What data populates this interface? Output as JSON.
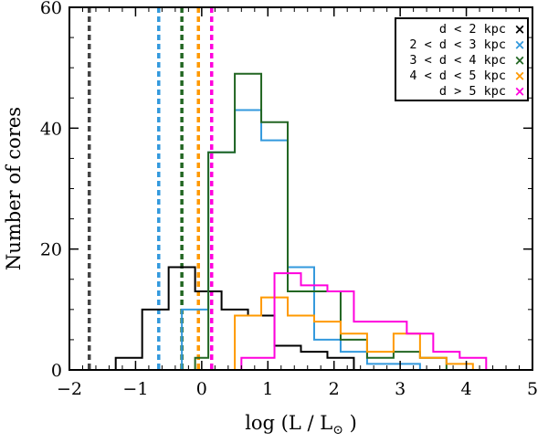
{
  "chart_data": {
    "type": "histogram",
    "title": "",
    "xlabel": "log (L / L",
    "xlabel_sub": "⊙",
    "xlabel_close": ")",
    "ylabel": "Number of cores",
    "xlim": [
      -2,
      5
    ],
    "ylim": [
      0,
      60
    ],
    "xticks": [
      -2,
      -1,
      0,
      1,
      2,
      3,
      4,
      5
    ],
    "xtick_labels": [
      "−2",
      "−1",
      "0",
      "1",
      "2",
      "3",
      "4",
      "5"
    ],
    "yticks": [
      0,
      20,
      40,
      60
    ],
    "ytick_labels": [
      "0",
      "20",
      "40",
      "60"
    ],
    "bin_width": 0.4,
    "legend_position": "top-right",
    "series": [
      {
        "name": "d < 2 kpc",
        "color": "#000000",
        "limit": -1.7,
        "limit_color": "#444444",
        "bin_starts": [
          -1.3,
          -0.9,
          -0.5,
          -0.1,
          0.3,
          0.7,
          1.1,
          1.5,
          1.9,
          2.3
        ],
        "counts": [
          2,
          10,
          17,
          13,
          10,
          9,
          4,
          3,
          2,
          0
        ]
      },
      {
        "name": "2 < d < 3 kpc",
        "color": "#3399dd",
        "limit": -0.65,
        "limit_color": "#3399dd",
        "bin_starts": [
          -0.3,
          0.1,
          0.5,
          0.9,
          1.3,
          1.7,
          2.1,
          2.5,
          2.9,
          3.3,
          3.7
        ],
        "counts": [
          10,
          36,
          43,
          38,
          17,
          5,
          3,
          1,
          1,
          0,
          0
        ]
      },
      {
        "name": "3 < d < 4 kpc",
        "color": "#226622",
        "limit": -0.3,
        "limit_color": "#226622",
        "bin_starts": [
          -0.1,
          0.1,
          0.5,
          0.9,
          1.3,
          1.7,
          2.1,
          2.5,
          2.9,
          3.3
        ],
        "counts": [
          2,
          36,
          49,
          41,
          13,
          13,
          5,
          2,
          3,
          2
        ]
      },
      {
        "name": "4 < d < 5 kpc",
        "color": "#ff9900",
        "limit": -0.05,
        "limit_color": "#ff9900",
        "bin_starts": [
          0.5,
          0.9,
          1.3,
          1.7,
          2.1,
          2.5,
          2.9,
          3.3,
          3.7
        ],
        "counts": [
          9,
          12,
          9,
          8,
          6,
          3,
          6,
          2,
          1
        ]
      },
      {
        "name": "d > 5 kpc",
        "color": "#ff00dd",
        "limit": 0.15,
        "limit_color": "#ff00dd",
        "bin_starts": [
          1.1,
          1.5,
          1.9,
          2.3,
          2.7,
          3.1,
          3.5,
          3.9,
          4.3
        ],
        "counts": [
          16,
          14,
          13,
          8,
          8,
          6,
          3,
          2,
          0
        ],
        "leading_count": 2,
        "leading_start": 0.6
      }
    ],
    "legend_marker": "×"
  }
}
